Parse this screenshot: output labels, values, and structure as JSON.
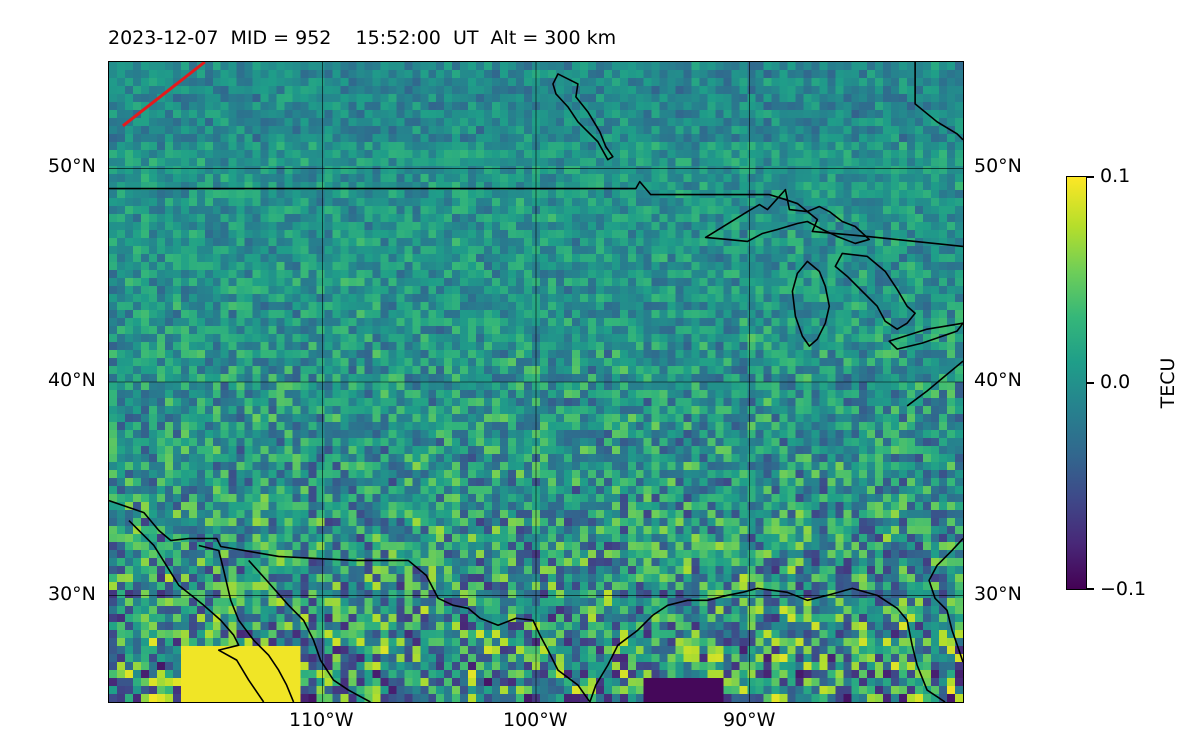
{
  "header": {
    "title": "2023-12-07  MID = 952    15:52:00  UT  Alt = 300 km"
  },
  "map": {
    "lon_range": [
      -120,
      -80
    ],
    "lat_range": [
      25,
      55
    ],
    "lat_ticks": [
      {
        "value": 30,
        "label": "30°N"
      },
      {
        "value": 40,
        "label": "40°N"
      },
      {
        "value": 50,
        "label": "50°N"
      }
    ],
    "lon_ticks": [
      {
        "value": -110,
        "label": "110°W"
      },
      {
        "value": -100,
        "label": "100°W"
      },
      {
        "value": -90,
        "label": "90°W"
      }
    ],
    "gridlines": true,
    "track_color": "#e41a1c",
    "coastline_color": "#000000"
  },
  "colorbar": {
    "label": "TECU",
    "colormap": "viridis",
    "min": -0.1,
    "max": 0.1,
    "ticks": [
      {
        "value": 0.1,
        "label": "0.1"
      },
      {
        "value": 0.0,
        "label": "0.0"
      },
      {
        "value": -0.1,
        "label": "−0.1"
      }
    ]
  }
}
